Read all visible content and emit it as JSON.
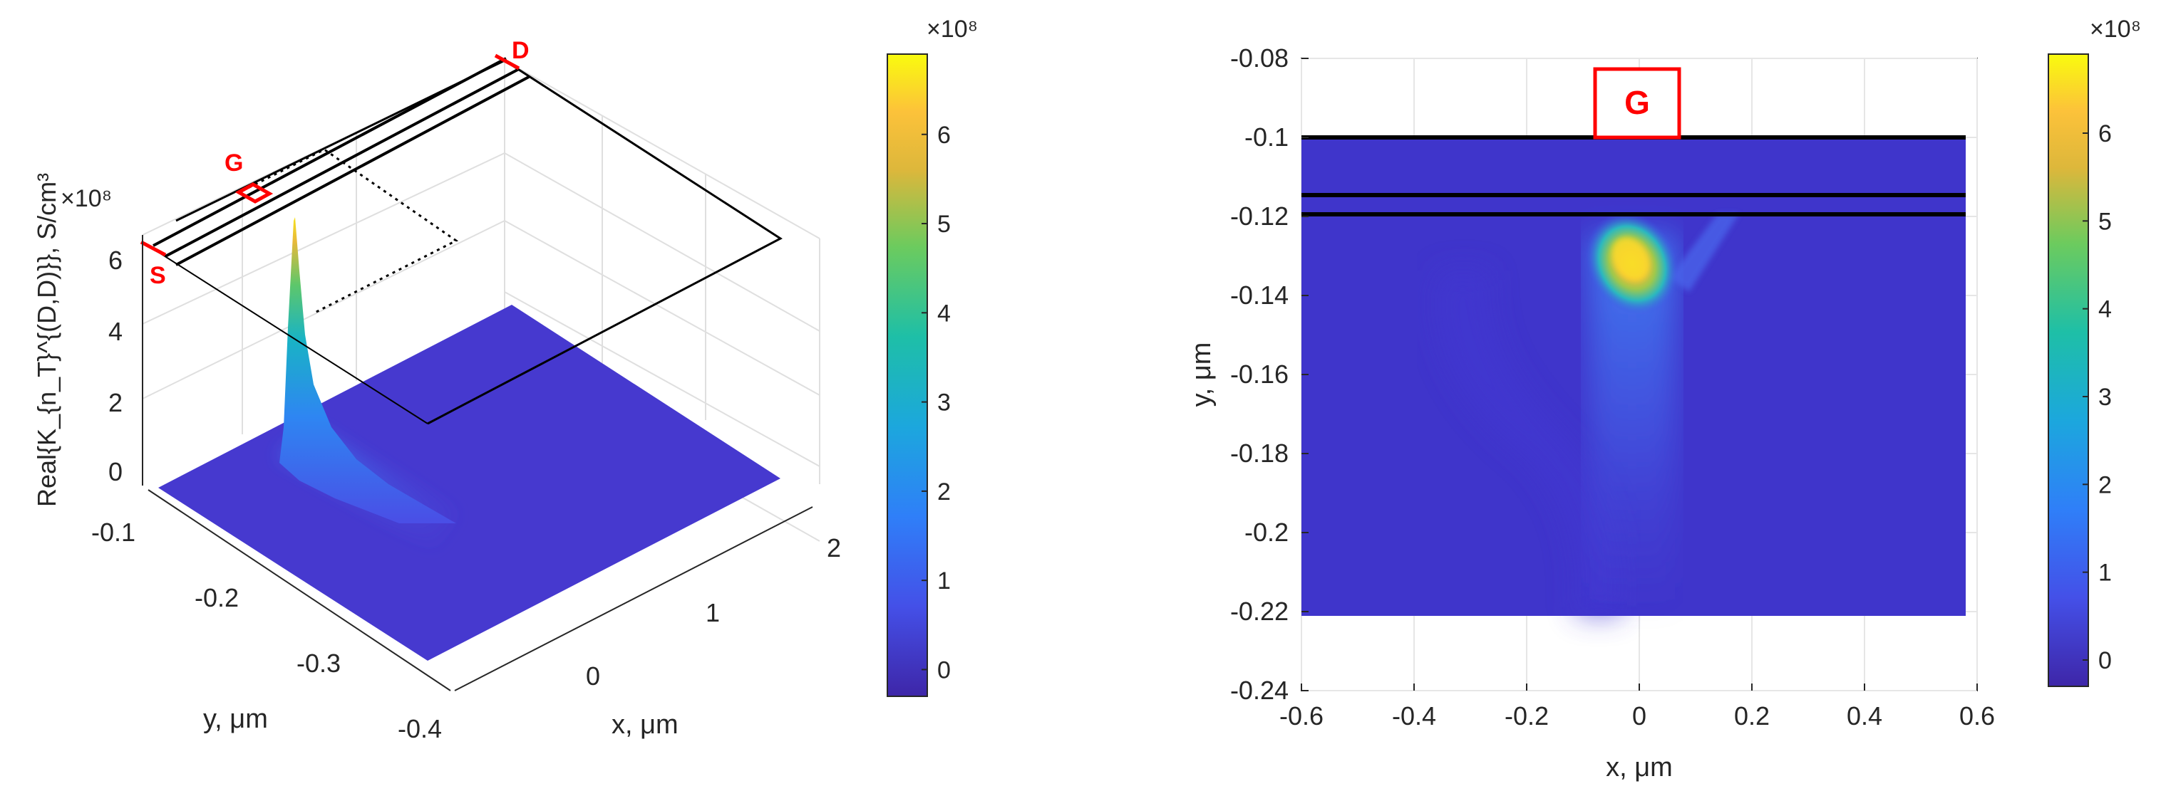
{
  "chart_data": [
    {
      "type": "surface3d",
      "title": "",
      "xlabel": "x, μm",
      "ylabel": "y, μm",
      "zlabel": "Real{K_{n_T}^{(D,D)}}, S/cm³",
      "z_exponent": "×10⁸",
      "x_ticks": [
        "0",
        "1",
        "2"
      ],
      "y_ticks": [
        "-0.1",
        "-0.2",
        "-0.3",
        "-0.4"
      ],
      "z_ticks": [
        "0",
        "2",
        "4",
        "6"
      ],
      "xlim": [
        -0.6,
        2.3
      ],
      "ylim": [
        -0.4,
        -0.08
      ],
      "zlim": [
        -0.3,
        6.9
      ],
      "peak": {
        "x": 0.0,
        "y": -0.135,
        "value": 6.8
      },
      "structure_labels": [
        "S",
        "G",
        "D"
      ],
      "grid": true
    },
    {
      "type": "heatmap",
      "title": "",
      "xlabel": "x, μm",
      "ylabel": "y, μm",
      "x_ticks": [
        "-0.6",
        "-0.4",
        "-0.2",
        "0",
        "0.2",
        "0.4",
        "0.6"
      ],
      "y_ticks": [
        "-0.08",
        "-0.1",
        "-0.12",
        "-0.14",
        "-0.16",
        "-0.18",
        "-0.2",
        "-0.22",
        "-0.24"
      ],
      "xlim": [
        -0.6,
        0.6
      ],
      "ylim": [
        -0.24,
        -0.08
      ],
      "data_extent": {
        "x": [
          -0.59,
          0.58
        ],
        "y": [
          -0.221,
          -0.1
        ]
      },
      "layer_lines_y": [
        -0.1,
        -0.115,
        -0.12
      ],
      "gate_label": "G",
      "gate_x": [
        -0.075,
        0.075
      ],
      "peak": {
        "x": -0.01,
        "y": -0.133,
        "value": 6.8
      },
      "grid": true
    }
  ],
  "colorbars": [
    {
      "exponent": "×10⁸",
      "ticks": [
        "0",
        "1",
        "2",
        "3",
        "4",
        "5",
        "6"
      ],
      "range": [
        -0.3,
        6.9
      ]
    },
    {
      "exponent": "×10⁸",
      "ticks": [
        "0",
        "1",
        "2",
        "3",
        "4",
        "5",
        "6"
      ],
      "range": [
        -0.3,
        6.9
      ]
    }
  ],
  "colors": {
    "background_level": "#3f35cb",
    "colormap": "parula",
    "annotation": "#ff0000",
    "axis": "#262626",
    "grid": "#dfdfdf"
  }
}
